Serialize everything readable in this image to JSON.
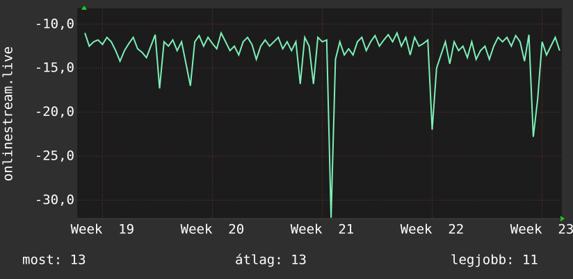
{
  "chart_data": {
    "type": "line",
    "y_label": "onlinestream.live",
    "x": [
      18.84,
      18.88,
      18.92,
      18.96,
      19.0,
      19.04,
      19.08,
      19.12,
      19.16,
      19.2,
      19.24,
      19.28,
      19.32,
      19.36,
      19.4,
      19.44,
      19.48,
      19.52,
      19.56,
      19.6,
      19.64,
      19.68,
      19.72,
      19.76,
      19.8,
      19.84,
      19.88,
      19.92,
      19.96,
      20.0,
      20.04,
      20.08,
      20.12,
      20.16,
      20.2,
      20.24,
      20.28,
      20.32,
      20.36,
      20.4,
      20.44,
      20.48,
      20.52,
      20.56,
      20.6,
      20.64,
      20.68,
      20.72,
      20.76,
      20.8,
      20.84,
      20.88,
      20.92,
      20.96,
      21.0,
      21.04,
      21.08,
      21.12,
      21.16,
      21.2,
      21.24,
      21.28,
      21.32,
      21.36,
      21.4,
      21.44,
      21.48,
      21.52,
      21.56,
      21.6,
      21.64,
      21.68,
      21.72,
      21.76,
      21.8,
      21.84,
      21.88,
      21.92,
      21.96,
      22.0,
      22.04,
      22.08,
      22.12,
      22.16,
      22.2,
      22.24,
      22.28,
      22.32,
      22.36,
      22.4,
      22.44,
      22.48,
      22.52,
      22.56,
      22.6,
      22.64,
      22.68,
      22.72,
      22.76,
      22.8,
      22.84,
      22.88,
      22.92,
      22.96,
      23.0,
      23.04,
      23.08,
      23.12,
      23.16
    ],
    "series": [
      {
        "color": "#7df0b8",
        "values": [
          -11.0,
          -12.5,
          -12.0,
          -11.8,
          -12.3,
          -11.5,
          -12.0,
          -13.0,
          -14.2,
          -13.0,
          -12.2,
          -11.5,
          -12.8,
          -13.2,
          -13.8,
          -12.5,
          -11.2,
          -17.3,
          -12.0,
          -12.5,
          -11.8,
          -13.0,
          -12.0,
          -14.5,
          -17.0,
          -12.0,
          -11.3,
          -12.5,
          -11.5,
          -12.2,
          -12.8,
          -11.0,
          -12.0,
          -13.0,
          -12.5,
          -13.5,
          -12.0,
          -11.5,
          -12.3,
          -14.0,
          -12.5,
          -11.8,
          -12.5,
          -12.0,
          -11.5,
          -12.8,
          -12.0,
          -13.0,
          -12.0,
          -16.8,
          -11.5,
          -12.5,
          -16.8,
          -11.5,
          -12.0,
          -11.8,
          -32.0,
          -14.0,
          -12.0,
          -13.5,
          -12.8,
          -13.5,
          -12.0,
          -11.5,
          -13.0,
          -12.0,
          -11.3,
          -12.5,
          -11.8,
          -11.2,
          -12.0,
          -11.0,
          -12.5,
          -11.5,
          -13.5,
          -11.5,
          -12.5,
          -12.2,
          -11.8,
          -22.0,
          -15.0,
          -13.5,
          -12.0,
          -14.5,
          -12.0,
          -13.0,
          -12.5,
          -13.8,
          -12.0,
          -14.0,
          -13.0,
          -12.5,
          -14.0,
          -12.5,
          -11.5,
          -12.0,
          -11.5,
          -12.5,
          -11.3,
          -12.0,
          -14.2,
          -11.2,
          -22.8,
          -18.5,
          -12.0,
          -13.5,
          -12.5,
          -11.5,
          -13.0
        ]
      }
    ],
    "xlim": [
      18.77,
      23.18
    ],
    "xticks": [
      {
        "value": 19,
        "label": "Week  19"
      },
      {
        "value": 20,
        "label": "Week  20"
      },
      {
        "value": 21,
        "label": "Week  21"
      },
      {
        "value": 22,
        "label": "Week  22"
      },
      {
        "value": 23,
        "label": "Week  23"
      }
    ],
    "ylim": [
      -32.1,
      -8.2
    ],
    "yticks": [
      {
        "value": -30,
        "label": "-30,0"
      },
      {
        "value": -25,
        "label": "-25,0"
      },
      {
        "value": -20,
        "label": "-20,0"
      },
      {
        "value": -15,
        "label": "-15,0"
      },
      {
        "value": -10,
        "label": "-10,0"
      }
    ],
    "grid": true,
    "footer": [
      "most: 13",
      "átlag: 13",
      "legjobb: 11"
    ]
  }
}
